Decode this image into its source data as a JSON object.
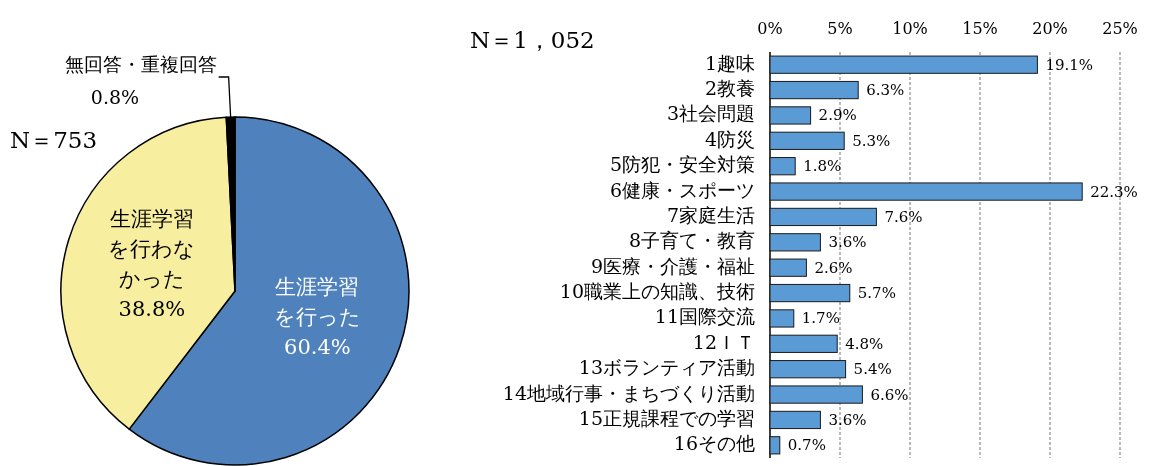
{
  "chart_data": [
    {
      "type": "pie",
      "categories": [
        "生涯学習を行った",
        "生涯学習を行わなかった",
        "無回答・重複回答"
      ],
      "values": [
        60.4,
        38.8,
        0.8
      ],
      "value_labels": [
        "60.4%",
        "38.8%",
        "0.8%"
      ],
      "colors": [
        "#4f81bd",
        "#f8eea0",
        "#000000"
      ],
      "annotations": [
        "N＝753"
      ]
    },
    {
      "type": "bar",
      "orientation": "horizontal",
      "categories": [
        "1趣味",
        "2教養",
        "3社会問題",
        "4防災",
        "5防犯・安全対策",
        "6健康・スポーツ",
        "7家庭生活",
        "8子育て・教育",
        "9医療・介護・福祉",
        "10職業上の知識、技術",
        "11国際交流",
        "12ＩＴ",
        "13ボランティア活動",
        "14地域行事・まちづくり活動",
        "15正規課程での学習",
        "16その他"
      ],
      "series": [
        {
          "color": "#5b9bd5",
          "values": [
            19.1,
            6.3,
            2.9,
            5.3,
            1.8,
            22.3,
            7.6,
            3.6,
            2.6,
            5.7,
            1.7,
            4.8,
            5.4,
            6.6,
            3.6,
            0.7
          ],
          "value_labels": [
            "19.1%",
            "6.3%",
            "2.9%",
            "5.3%",
            "1.8%",
            "22.3%",
            "7.6%",
            "3.6%",
            "2.6%",
            "5.7%",
            "1.7%",
            "4.8%",
            "5.4%",
            "6.6%",
            "3.6%",
            "0.7%"
          ]
        }
      ],
      "xlim": [
        0,
        25
      ],
      "xticks": [
        {
          "value": 0,
          "label": "0%"
        },
        {
          "value": 5,
          "label": "5%"
        },
        {
          "value": 10,
          "label": "10%"
        },
        {
          "value": 15,
          "label": "15%"
        },
        {
          "value": 20,
          "label": "20%"
        },
        {
          "value": 25,
          "label": "25%"
        }
      ],
      "grid": "x",
      "annotations": [
        "N＝1，052"
      ]
    }
  ]
}
